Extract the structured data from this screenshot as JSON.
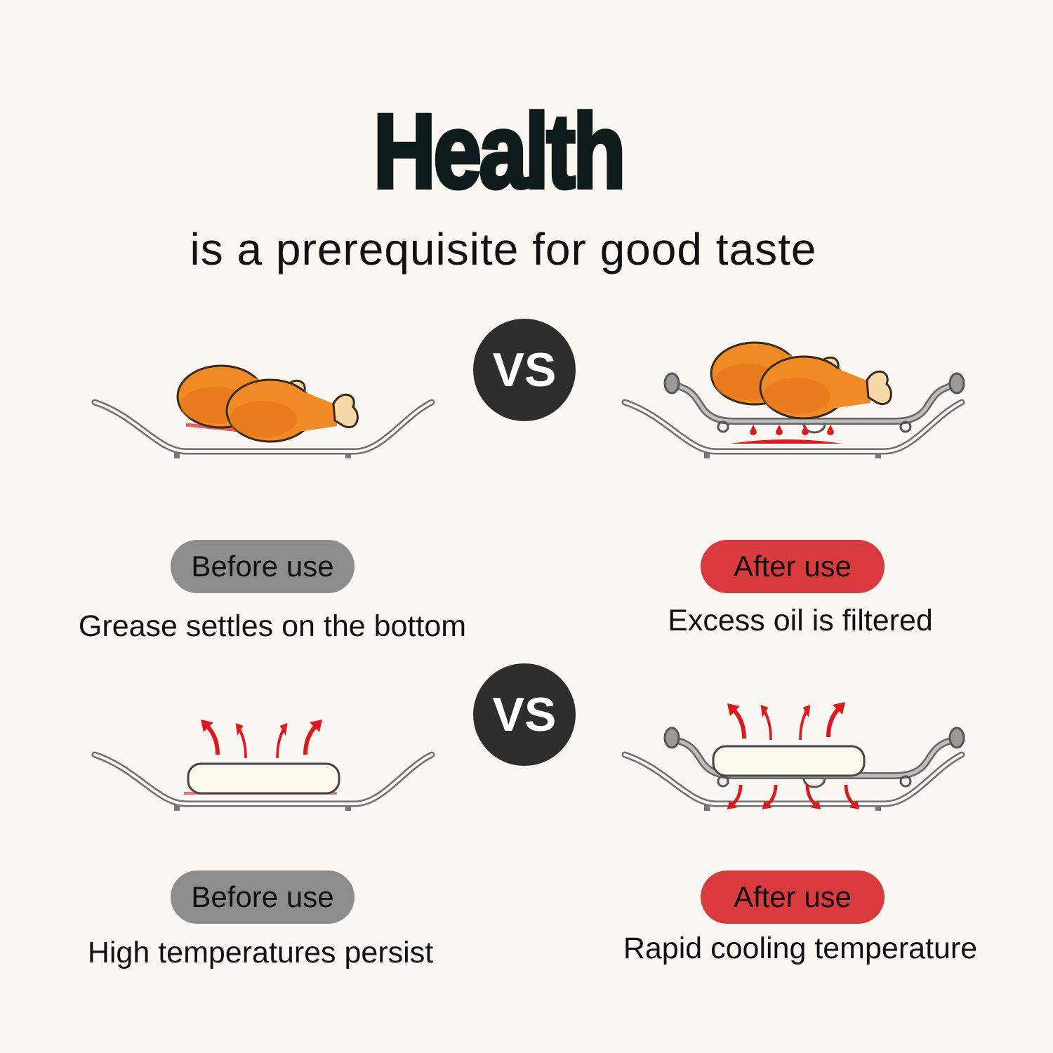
{
  "header": {
    "title": "Health",
    "subtitle": "is a prerequisite for good taste"
  },
  "vs_label": "VS",
  "comparisons": [
    {
      "before": {
        "badge": "Before use",
        "caption": "Grease settles on the bottom",
        "icon": "drumsticks-on-pan-icon"
      },
      "after": {
        "badge": "After use",
        "caption": "Excess oil is filtered",
        "icon": "drumsticks-on-rack-icon"
      }
    },
    {
      "before": {
        "badge": "Before use",
        "caption": "High temperatures persist",
        "icon": "food-heat-on-pan-icon"
      },
      "after": {
        "badge": "After use",
        "caption": "Rapid cooling temperature",
        "icon": "food-cooling-on-rack-icon"
      }
    }
  ],
  "colors": {
    "background": "#fbf8f3",
    "before_badge": "#8d8d8d",
    "after_badge": "#d93a3d",
    "vs_circle": "#2e2e2e",
    "chicken": "#f08a24",
    "heat_arrow": "#e0181e"
  }
}
